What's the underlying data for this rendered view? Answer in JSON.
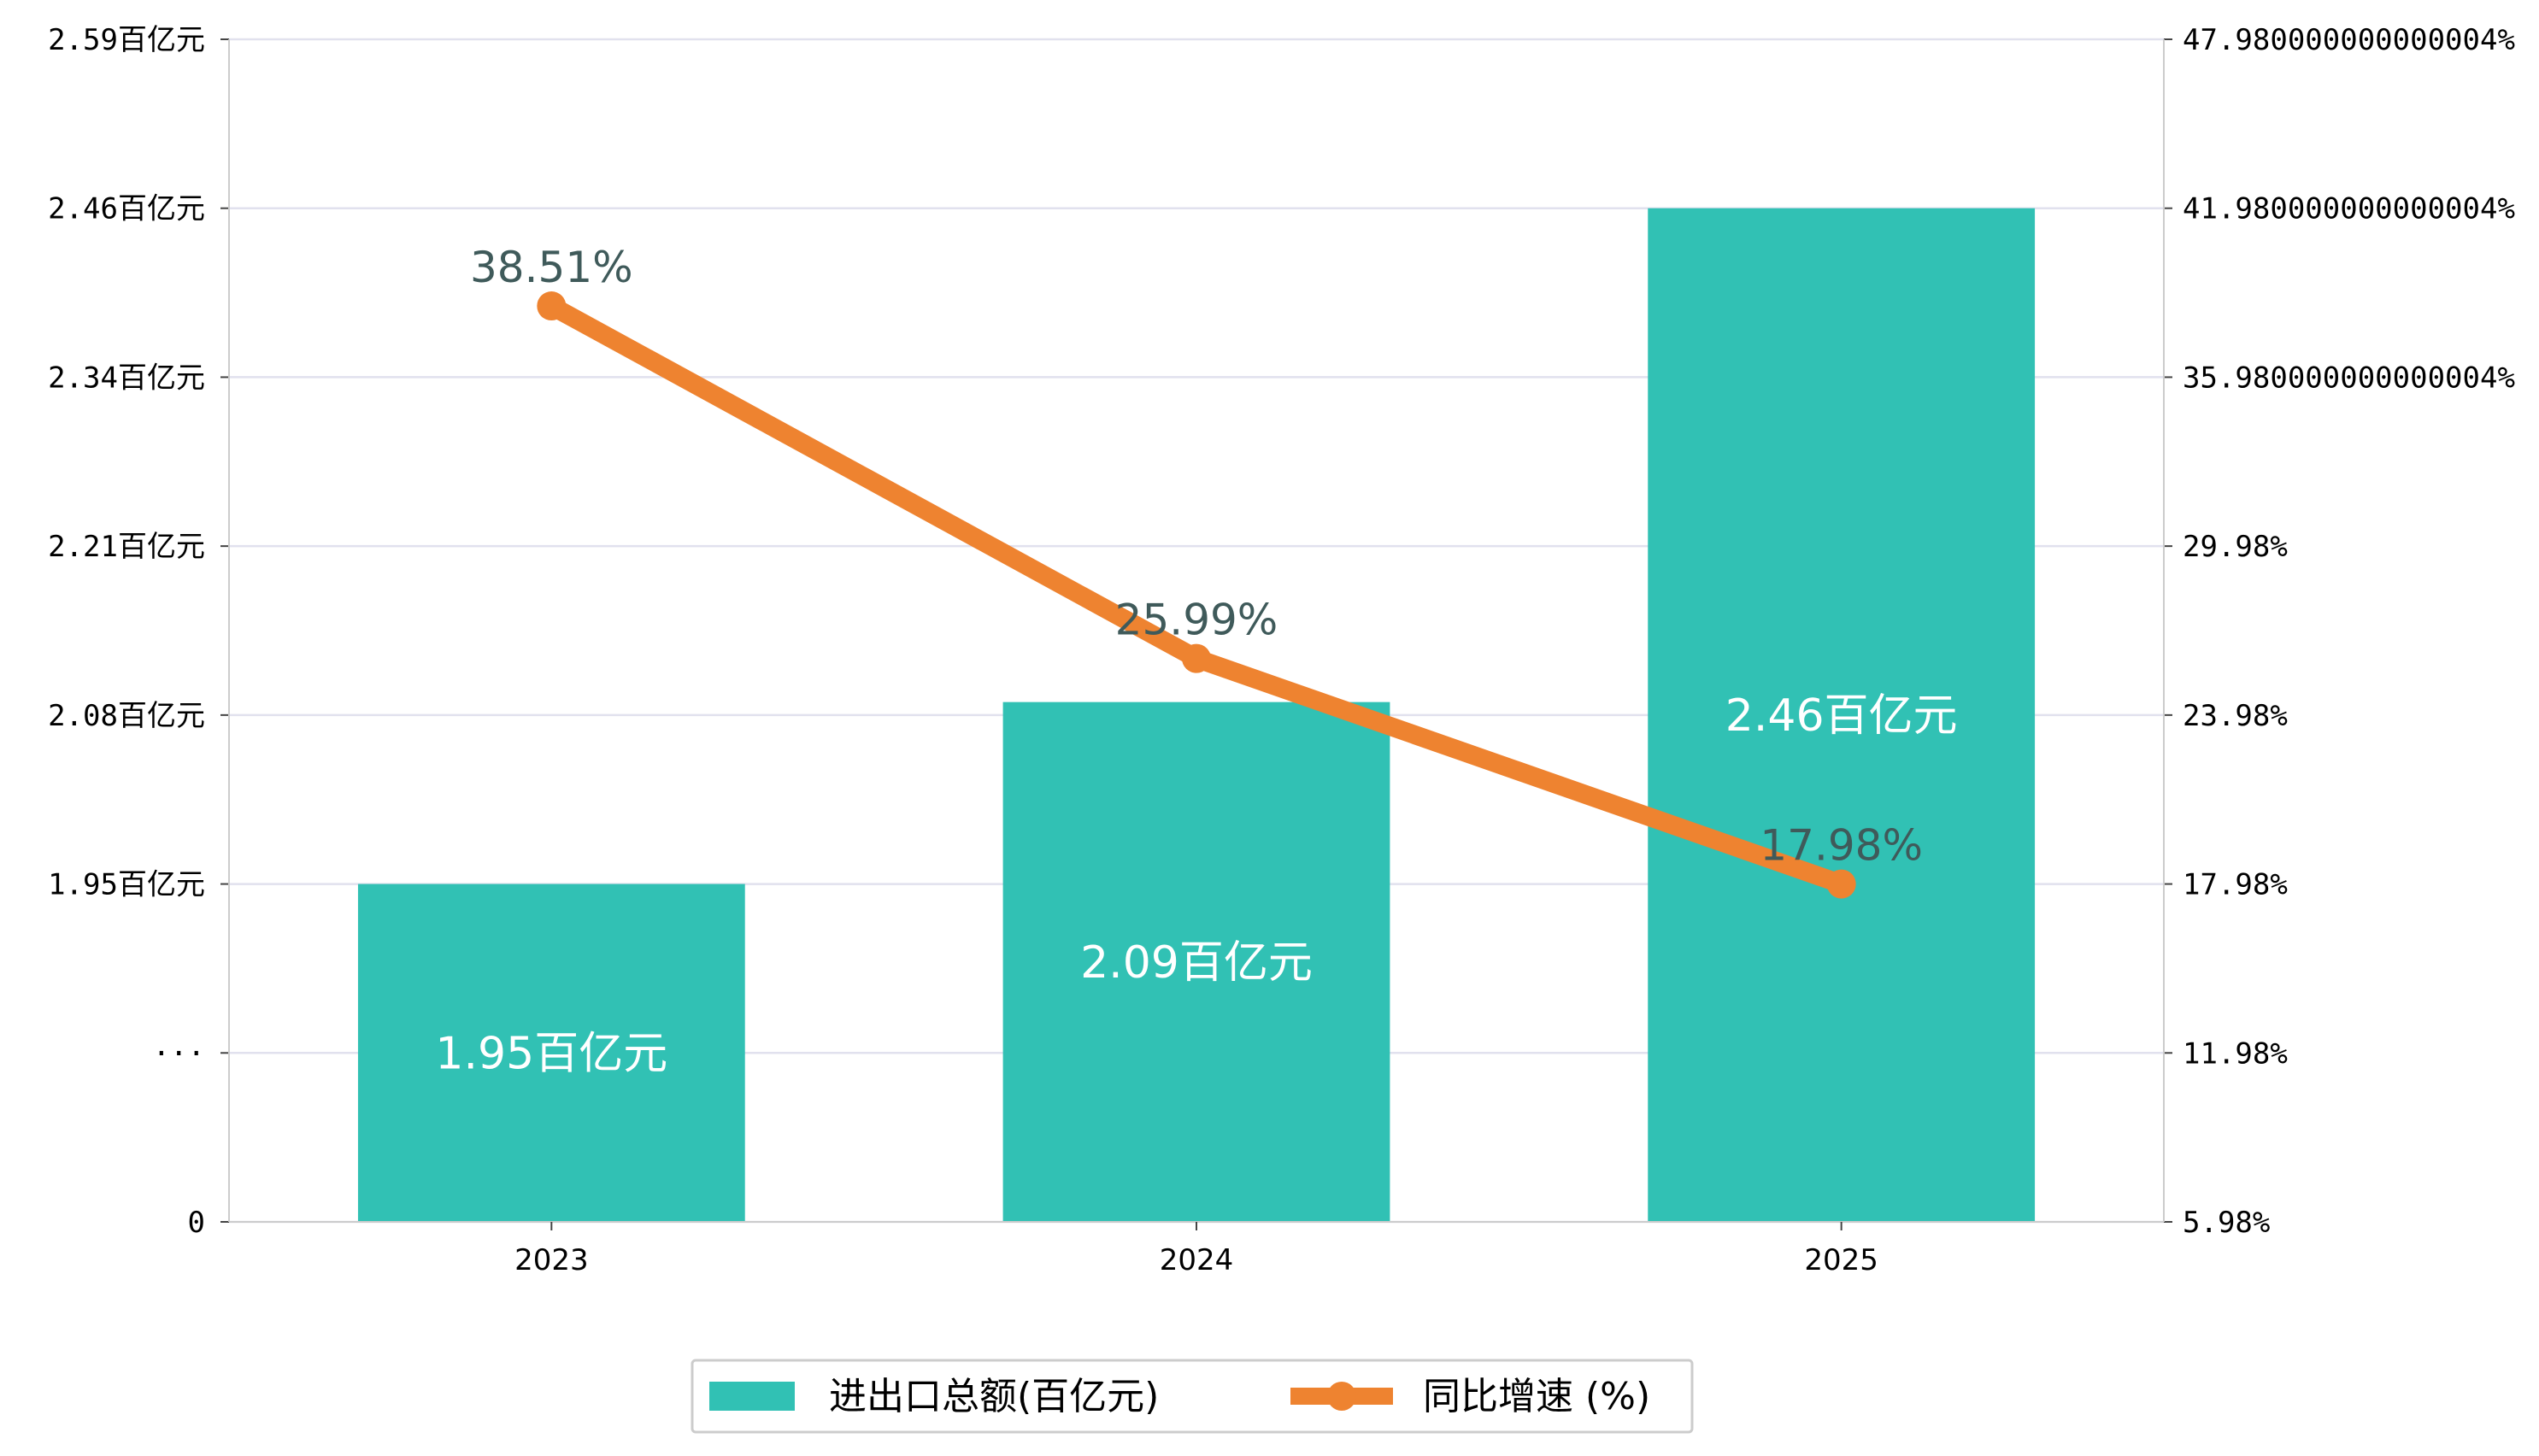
{
  "colors": {
    "bar": "#31c1b4",
    "line": "#ee8330",
    "grid": "#e1e1ee",
    "axis": "#cccccc",
    "line_label": "#3f5a5a",
    "bar_label": "#ffffff"
  },
  "chart_data": {
    "type": "bar",
    "categories": [
      "2023",
      "2024",
      "2025"
    ],
    "series": [
      {
        "name": "进出口总额(百亿元)",
        "type": "bar",
        "axis": "left",
        "values": [
          1.95,
          2.09,
          2.46
        ],
        "labels": [
          "1.95百亿元",
          "2.09百亿元",
          "2.46百亿元"
        ]
      },
      {
        "name": "同比增速 (%)",
        "type": "line",
        "axis": "right",
        "values": [
          38.51,
          25.99,
          17.98
        ],
        "labels": [
          "38.51%",
          "25.99%",
          "17.98%"
        ]
      }
    ],
    "left_axis": {
      "ticks": [
        {
          "value": 0,
          "label": "0"
        },
        {
          "value": 1.82,
          "label": "···"
        },
        {
          "value": 1.95,
          "label": "1.95百亿元"
        },
        {
          "value": 2.08,
          "label": "2.08百亿元"
        },
        {
          "value": 2.21,
          "label": "2.21百亿元"
        },
        {
          "value": 2.34,
          "label": "2.34百亿元"
        },
        {
          "value": 2.46,
          "label": "2.46百亿元"
        },
        {
          "value": 2.59,
          "label": "2.59百亿元"
        }
      ]
    },
    "right_axis": {
      "range": [
        5.98,
        47.98
      ],
      "ticks": [
        {
          "value": 5.98,
          "label": "5.98%"
        },
        {
          "value": 11.98,
          "label": "11.98%"
        },
        {
          "value": 17.98,
          "label": "17.98%"
        },
        {
          "value": 23.98,
          "label": "23.98%"
        },
        {
          "value": 29.98,
          "label": "29.98%"
        },
        {
          "value": 35.98,
          "label": "35.980000000000004%"
        },
        {
          "value": 41.98,
          "label": "41.980000000000004%"
        },
        {
          "value": 47.98,
          "label": "47.980000000000004%"
        }
      ]
    },
    "grid": true,
    "legend": "bottom-center"
  }
}
